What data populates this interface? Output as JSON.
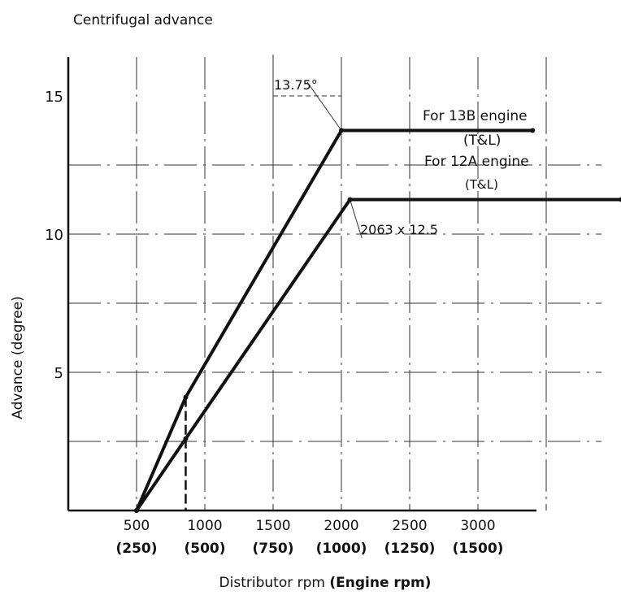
{
  "chart_data": {
    "type": "line",
    "title": "Centrifugal advance",
    "xlabel": "Distributor rpm",
    "xlabel_bold": "(Engine rpm)",
    "ylabel": "Advance (degree)",
    "xlim": [
      0,
      4050
    ],
    "ylim": [
      0,
      16.5
    ],
    "grid": true,
    "x_ticks": [
      {
        "value": 500,
        "label": "500",
        "sublabel": "(250)"
      },
      {
        "value": 1000,
        "label": "1000",
        "sublabel": "(500)"
      },
      {
        "value": 1500,
        "label": "1500",
        "sublabel": "(750)"
      },
      {
        "value": 2000,
        "label": "2000",
        "sublabel": "(1000)"
      },
      {
        "value": 2500,
        "label": "2500",
        "sublabel": "(1250)"
      },
      {
        "value": 3000,
        "label": "3000",
        "sublabel": "(1500)"
      }
    ],
    "y_ticks": [
      {
        "value": 5,
        "label": "5"
      },
      {
        "value": 10,
        "label": "10"
      },
      {
        "value": 15,
        "label": "15"
      }
    ],
    "series": [
      {
        "name": "For 13B engine",
        "sub": "(T&L)",
        "x": [
          500,
          860,
          2000,
          3400
        ],
        "y": [
          0,
          4.1,
          13.75,
          13.75
        ]
      },
      {
        "name": "For 12A engine",
        "sub": "(T&L)",
        "x": [
          500,
          860,
          2063,
          4050
        ],
        "y": [
          0,
          2.6,
          11.25,
          11.25
        ]
      }
    ],
    "annotations": [
      {
        "text": "13.75°",
        "x": 2000,
        "y": 13.75
      },
      {
        "text": "2063 x 12.5",
        "x": 2063,
        "y": 11.25
      }
    ]
  }
}
